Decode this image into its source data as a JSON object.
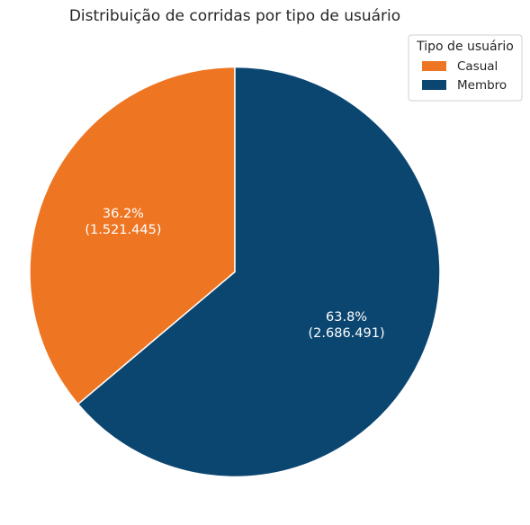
{
  "chart_data": {
    "type": "pie",
    "title": "Distribuição de corridas por tipo de usuário",
    "categories": [
      "Casual",
      "Membro"
    ],
    "values": [
      1521445,
      2686491
    ],
    "percent_labels": [
      "36.2%",
      "63.8%"
    ],
    "count_labels": [
      "(1.521.445)",
      "(2.686.491)"
    ],
    "colors": [
      "#ee7623",
      "#0b4670"
    ],
    "legend": {
      "title": "Tipo de usuário",
      "placement": "top-right",
      "entries": [
        "Casual",
        "Membro"
      ]
    }
  }
}
